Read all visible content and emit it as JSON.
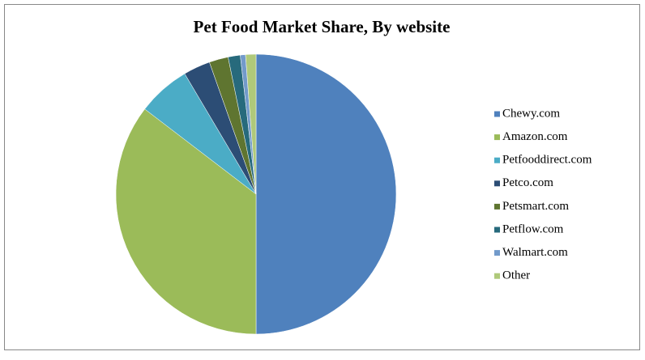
{
  "chart_data": {
    "type": "pie",
    "title": "Pet Food Market Share, By website",
    "categories": [
      "Chewy.com",
      "Amazon.com",
      "Petfooddirect.com",
      "Petco.com",
      "Petsmart.com",
      "Petflow.com",
      "Walmart.com",
      "Other"
    ],
    "values": [
      50,
      35.4,
      6.1,
      3.1,
      2.2,
      1.4,
      0.6,
      1.2
    ],
    "colors": [
      "#4f81bd",
      "#9bbb59",
      "#4bacc6",
      "#2c4d75",
      "#5f7530",
      "#276a7c",
      "#729aca",
      "#afc97a"
    ],
    "legend": "right"
  }
}
